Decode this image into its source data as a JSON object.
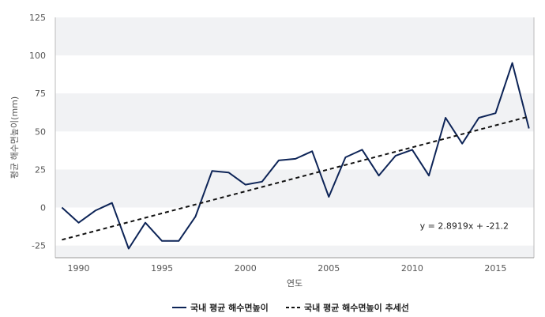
{
  "chart_data": {
    "type": "line",
    "xlabel": "연도",
    "ylabel": "평균 해수면높이(mm)",
    "xlim": [
      1988.6,
      2017.3
    ],
    "ylim": [
      -33,
      125
    ],
    "x_ticks": [
      1990,
      1995,
      2000,
      2005,
      2010,
      2015
    ],
    "y_ticks": [
      -25,
      0,
      25,
      50,
      75,
      100,
      125
    ],
    "grid": "horizontal bands",
    "legend_position": "bottom-center",
    "series": [
      {
        "name": "국내 평균 해수면높이",
        "style": "solid",
        "color": "#0d2457",
        "x": [
          1989,
          1990,
          1991,
          1992,
          1993,
          1994,
          1995,
          1996,
          1997,
          1998,
          1999,
          2000,
          2001,
          2002,
          2003,
          2004,
          2005,
          2006,
          2007,
          2008,
          2009,
          2010,
          2011,
          2012,
          2013,
          2014,
          2015,
          2016,
          2017
        ],
        "values": [
          0,
          -10,
          -2,
          3,
          -27,
          -10,
          -22,
          -22,
          -6,
          24,
          23,
          15,
          17,
          31,
          32,
          37,
          7,
          33,
          38,
          21,
          34,
          38,
          21,
          59,
          42,
          59,
          62,
          95,
          52
        ]
      },
      {
        "name": "국내 평균 해수면높이 추세선",
        "style": "dashed",
        "color": "#111111",
        "x": [
          1989,
          2017
        ],
        "values": [
          -21.2,
          59.8
        ]
      }
    ],
    "annotation": "y = 2.8919x + -21.2"
  }
}
